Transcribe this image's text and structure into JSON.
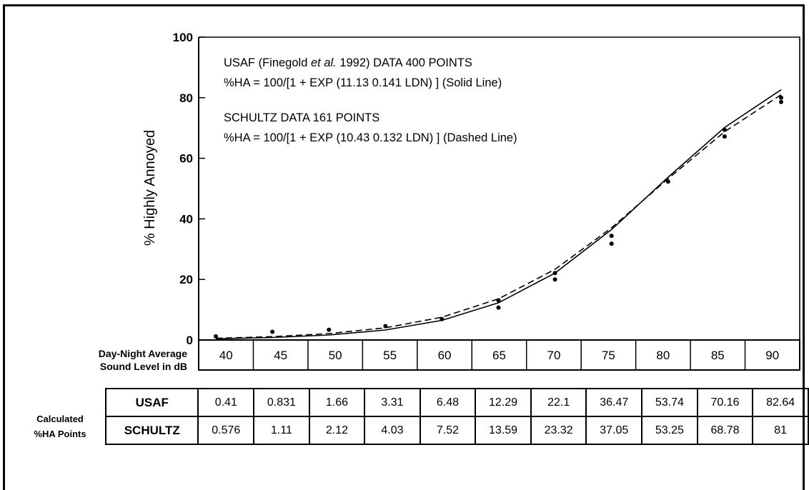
{
  "chart_data": {
    "type": "line",
    "ylabel": "% Highly Annoyed",
    "xlabel": "Day-Night Average Sound Level in dB",
    "ylim": [
      0,
      100
    ],
    "xlim": [
      40,
      90
    ],
    "y_ticks": [
      "100",
      "80",
      "60",
      "40",
      "20",
      "0"
    ],
    "x": [
      40,
      45,
      50,
      55,
      60,
      65,
      70,
      75,
      80,
      85,
      90
    ],
    "x_labels": [
      "40",
      "45",
      "50",
      "55",
      "60",
      "65",
      "70",
      "75",
      "80",
      "85",
      "90"
    ],
    "grid": false,
    "series": [
      {
        "name": "USAF",
        "line_style": "solid",
        "values": [
          0.41,
          0.831,
          1.66,
          3.31,
          6.48,
          12.29,
          22.1,
          36.47,
          53.74,
          70.16,
          82.64
        ],
        "points": [
          [
            40,
            1.2
          ],
          [
            45,
            2.7
          ],
          [
            50,
            3.4
          ],
          [
            55,
            4.6
          ],
          [
            60,
            6.9
          ],
          [
            65,
            10.7
          ],
          [
            70,
            20.0
          ],
          [
            75,
            31.8
          ],
          [
            80,
            52.3
          ],
          [
            85,
            67.2
          ],
          [
            90,
            78.6
          ]
        ]
      },
      {
        "name": "SCHULTZ",
        "line_style": "dashed",
        "values": [
          0.576,
          1.11,
          2.12,
          4.03,
          7.52,
          13.59,
          23.32,
          37.05,
          53.25,
          68.78,
          81
        ],
        "points": [
          [
            65,
            13.1
          ],
          [
            70,
            22.1
          ],
          [
            75,
            34.4
          ],
          [
            85,
            69.4
          ],
          [
            90,
            80.0
          ]
        ]
      }
    ],
    "annotations": [
      {
        "line1_pre": "USAF (Finegold ",
        "line1_italic": "et al.",
        "line1_post": "  1992) DATA 400 POINTS",
        "line2": "%HA = 100/[1 + EXP (11.13  0.141 LDN)  ]  (Solid Line)"
      },
      {
        "line1": "SCHULTZ DATA 161 POINTS",
        "line2": "%HA = 100/[1 + EXP (10.43  0.132 LDN)  ]  (Dashed Line)"
      }
    ]
  },
  "table": {
    "side_label_line1": "Calculated",
    "side_label_line2": "%HA Points",
    "rows": [
      {
        "name": "USAF",
        "cells": [
          "0.41",
          "0.831",
          "1.66",
          "3.31",
          "6.48",
          "12.29",
          "22.1",
          "36.47",
          "53.74",
          "70.16",
          "82.64"
        ]
      },
      {
        "name": "SCHULTZ",
        "cells": [
          "0.576",
          "1.11",
          "2.12",
          "4.03",
          "7.52",
          "13.59",
          "23.32",
          "37.05",
          "53.25",
          "68.78",
          "81"
        ]
      }
    ]
  },
  "xaxis_title_line1": "Day-Night Average",
  "xaxis_title_line2": "Sound Level in dB"
}
